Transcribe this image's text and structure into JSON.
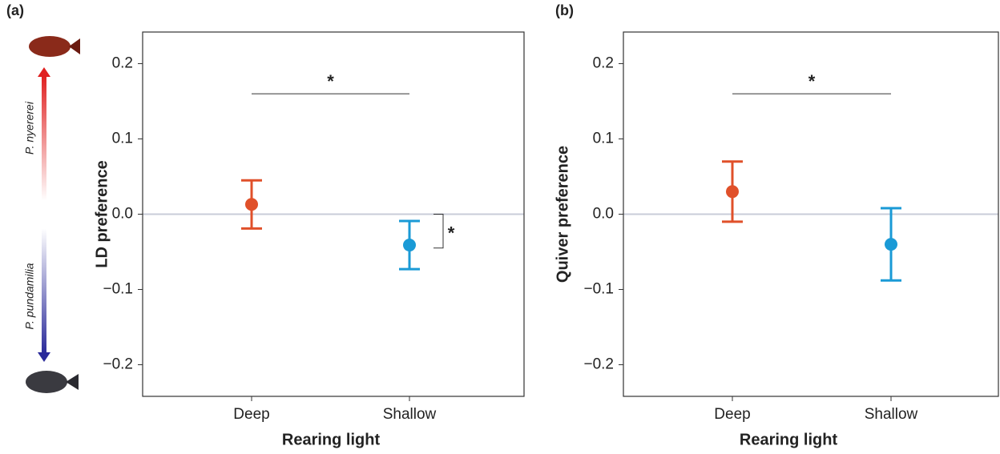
{
  "chart_data": [
    {
      "type": "errorbar",
      "panel_label": "(a)",
      "species": [
        "P. nyererei",
        "P. pundamilia"
      ],
      "ylabel": "LD preference",
      "xlabel": "Rearing light",
      "categories": [
        "Deep",
        "Shallow"
      ],
      "values": [
        0.013,
        -0.041
      ],
      "errors": [
        0.032,
        0.032
      ],
      "colors": [
        "#e0502a",
        "#1a9ad6"
      ],
      "ylim": [
        -0.242,
        0.242
      ],
      "yticks": [
        {
          "value": -0.2,
          "label": "−0.2"
        },
        {
          "value": -0.1,
          "label": "−0.1"
        },
        {
          "value": 0,
          "label": "0.0"
        },
        0.1,
        0.2
      ],
      "reference_line": 0,
      "annotations": [
        {
          "text": "*",
          "y": 0.16
        },
        {
          "text": "*",
          "y": [
            0,
            -0.045
          ]
        }
      ]
    },
    {
      "type": "errorbar",
      "panel_label": "(b)",
      "ylabel": "Quiver preference",
      "xlabel": "Rearing light",
      "categories": [
        "Deep",
        "Shallow"
      ],
      "values": [
        0.03,
        -0.04
      ],
      "errors": [
        0.04,
        0.048
      ],
      "colors": [
        "#e0502a",
        "#1a9ad6"
      ],
      "ylim": [
        -0.242,
        0.242
      ],
      "yticks": [
        {
          "value": -0.2,
          "label": "−0.2"
        },
        {
          "value": -0.1,
          "label": "−0.1"
        },
        {
          "value": 0,
          "label": "0.0"
        },
        0.1,
        0.2
      ],
      "reference_line": 0,
      "annotations": [
        {
          "text": "*",
          "y": 0.16
        }
      ]
    }
  ]
}
